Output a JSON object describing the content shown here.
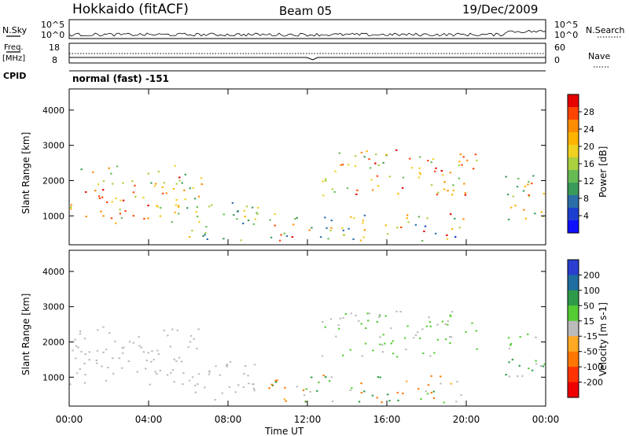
{
  "header": {
    "radar": "Hokkaido (fitACF)",
    "beam": "Beam 05",
    "date": "19/Dec/2009"
  },
  "noise_panel": {
    "left_label": "N.Sky",
    "left_ticks": [
      "10^5",
      "10^0"
    ],
    "right_ticks": [
      "10^5",
      "10^0"
    ],
    "right_label": "N.Search"
  },
  "freq_panel": {
    "left_label_top": "Freq.",
    "left_label_unit": "[MHz]",
    "left_ticks": [
      "18",
      "8"
    ],
    "right_ticks": [
      "60",
      "0"
    ],
    "right_label": "Nave",
    "cpid_label": "CPID",
    "cpid_value": "normal (fast) -151"
  },
  "x_axis": {
    "label": "Time UT",
    "ticks": [
      "00:00",
      "04:00",
      "08:00",
      "12:00",
      "16:00",
      "20:00",
      "00:00"
    ]
  },
  "power_colorbar": {
    "label": "Power [dB]",
    "ticks": [
      "28",
      "24",
      "20",
      "16",
      "12",
      "8",
      "4"
    ],
    "colors": [
      "#e60000",
      "#ff4400",
      "#ff8c00",
      "#ffb400",
      "#f0d020",
      "#aad040",
      "#66bb55",
      "#3a9a5a",
      "#2c6ea8",
      "#1d3fd0",
      "#1010ff"
    ]
  },
  "velocity_colorbar": {
    "label": "Velocity [m s-1]",
    "ticks": [
      "200",
      "100",
      "50",
      "15",
      "-15",
      "-50",
      "-100",
      "-200"
    ],
    "colors": [
      "#2a3fd0",
      "#1e6ea0",
      "#2f9a4a",
      "#55cc33",
      "#bbbbbb",
      "#ffaa22",
      "#ff7700",
      "#ff3300",
      "#ee0000"
    ]
  },
  "panels": {
    "power_ylabel": "Slant Range [km]",
    "velocity_ylabel": "Slant Range [km]",
    "y_ticks": [
      "4000",
      "3000",
      "2000",
      "1000"
    ]
  },
  "chart_data": [
    {
      "type": "heatmap",
      "title": "Power",
      "xlabel": "Time UT",
      "ylabel": "Slant Range [km]",
      "xlim": [
        "00:00",
        "24:00"
      ],
      "ylim": [
        180,
        4600
      ],
      "colorbar": {
        "label": "Power [dB]",
        "range": [
          0,
          30
        ],
        "ticks": [
          4,
          8,
          12,
          16,
          20,
          24,
          28
        ]
      },
      "echo_regions": [
        {
          "t_start": "00:00",
          "t_end": "06:40",
          "range_km": [
            800,
            2450
          ],
          "power_dB": [
            8,
            30
          ]
        },
        {
          "t_start": "06:00",
          "t_end": "09:30",
          "range_km": [
            300,
            1500
          ],
          "power_dB": [
            4,
            20
          ]
        },
        {
          "t_start": "10:00",
          "t_end": "20:00",
          "range_km": [
            300,
            1100
          ],
          "power_dB": [
            4,
            30
          ]
        },
        {
          "t_start": "12:40",
          "t_end": "20:30",
          "range_km": [
            1600,
            2900
          ],
          "power_dB": [
            8,
            30
          ]
        },
        {
          "t_start": "21:50",
          "t_end": "24:00",
          "range_km": [
            900,
            2300
          ],
          "power_dB": [
            8,
            30
          ]
        }
      ]
    },
    {
      "type": "heatmap",
      "title": "Velocity",
      "xlabel": "Time UT",
      "ylabel": "Slant Range [km]",
      "xlim": [
        "00:00",
        "24:00"
      ],
      "ylim": [
        180,
        4600
      ],
      "colorbar": {
        "label": "Velocity [m s-1]",
        "range": [
          -200,
          200
        ],
        "ticks": [
          200,
          100,
          50,
          15,
          -15,
          -50,
          -100,
          -200
        ]
      },
      "echo_regions": [
        {
          "t_start": "00:00",
          "t_end": "06:40",
          "range_km": [
            800,
            2450
          ],
          "velocity_ms": [
            -15,
            15
          ]
        },
        {
          "t_start": "06:00",
          "t_end": "09:30",
          "range_km": [
            300,
            1500
          ],
          "velocity_ms": [
            -15,
            15
          ]
        },
        {
          "t_start": "10:00",
          "t_end": "20:00",
          "range_km": [
            300,
            1100
          ],
          "velocity_ms": [
            -100,
            100
          ]
        },
        {
          "t_start": "12:40",
          "t_end": "20:30",
          "range_km": [
            1600,
            2900
          ],
          "velocity_ms": [
            -15,
            50
          ]
        },
        {
          "t_start": "21:50",
          "t_end": "24:00",
          "range_km": [
            900,
            2300
          ],
          "velocity_ms": [
            -15,
            100
          ]
        }
      ]
    }
  ]
}
